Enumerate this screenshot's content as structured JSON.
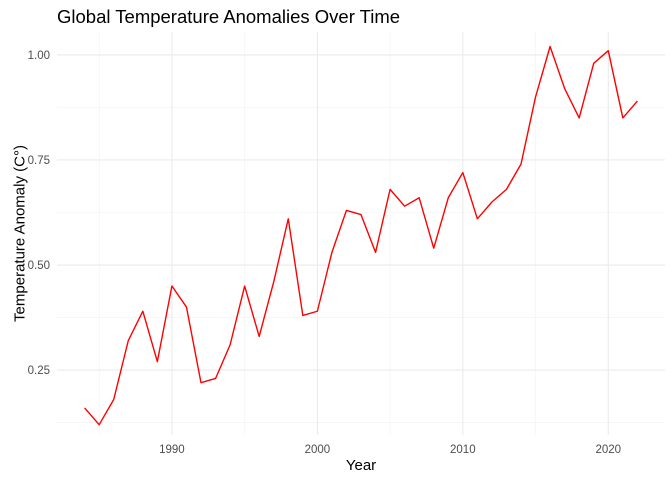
{
  "chart_data": {
    "type": "line",
    "title": "Global Temperature Anomalies Over Time",
    "xlabel": "Year",
    "ylabel": "Temperature Anomaly (C°)",
    "xlim": [
      1982.1,
      2023.9
    ],
    "ylim": [
      0.0955,
      1.0545
    ],
    "x_ticks": [
      1990,
      2000,
      2010,
      2020
    ],
    "x_minor_ticks": [
      1985,
      1995,
      2005,
      2015
    ],
    "y_ticks": [
      0.25,
      0.5,
      0.75,
      1.0
    ],
    "y_tick_labels": [
      "0.25",
      "0.50",
      "0.75",
      "1.00"
    ],
    "y_minor_ticks": [
      0.125,
      0.375,
      0.625,
      0.875
    ],
    "grid": true,
    "line_color": "#ff0000",
    "x": [
      1984,
      1985,
      1986,
      1987,
      1988,
      1989,
      1990,
      1991,
      1992,
      1993,
      1994,
      1995,
      1996,
      1997,
      1998,
      1999,
      2000,
      2001,
      2002,
      2003,
      2004,
      2005,
      2006,
      2007,
      2008,
      2009,
      2010,
      2011,
      2012,
      2013,
      2014,
      2015,
      2016,
      2017,
      2018,
      2019,
      2020,
      2021,
      2022
    ],
    "series": [
      {
        "values": [
          0.16,
          0.12,
          0.18,
          0.32,
          0.39,
          0.27,
          0.45,
          0.4,
          0.22,
          0.23,
          0.31,
          0.45,
          0.33,
          0.46,
          0.61,
          0.38,
          0.39,
          0.53,
          0.63,
          0.62,
          0.53,
          0.68,
          0.64,
          0.66,
          0.54,
          0.66,
          0.72,
          0.61,
          0.65,
          0.68,
          0.74,
          0.9,
          1.02,
          0.92,
          0.85,
          0.98,
          1.01,
          0.85,
          0.89
        ]
      }
    ]
  }
}
